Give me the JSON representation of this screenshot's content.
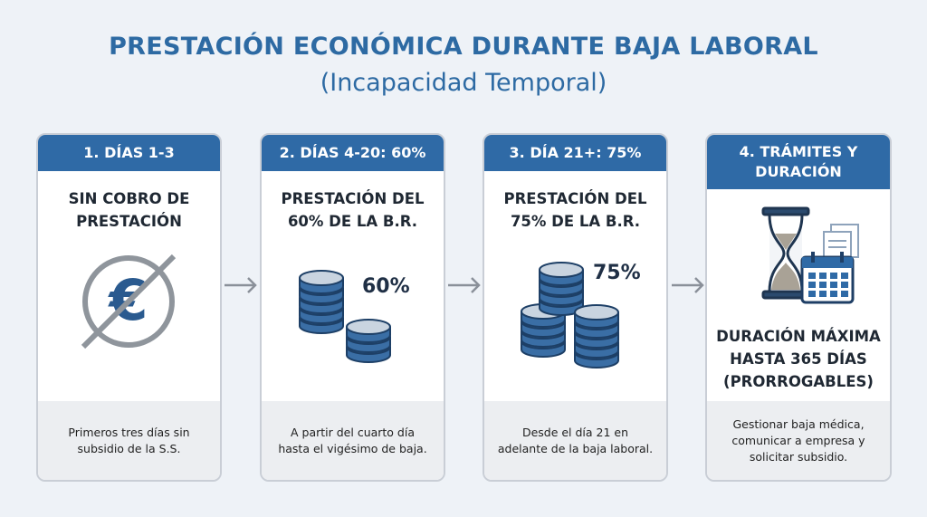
{
  "header": {
    "title": "PRESTACIÓN ECONÓMICA DURANTE BAJA LABORAL",
    "subtitle": "(Incapacidad Temporal)"
  },
  "cards": [
    {
      "step": [
        "1. DÍAS 1-3"
      ],
      "heading": [
        "SIN COBRO DE",
        "PRESTACIÓN"
      ],
      "footer": [
        "Primeros tres días sin",
        "subsidio de la S.S."
      ]
    },
    {
      "step": [
        "2. DÍAS 4-20: 60%"
      ],
      "heading": [
        "PRESTACIÓN DEL",
        "60% DE LA B.R."
      ],
      "icon_label": "60%",
      "footer": [
        "A partir del cuarto día",
        "hasta el vigésimo de baja."
      ]
    },
    {
      "step": [
        "3. DÍA 21+: 75%"
      ],
      "heading": [
        "PRESTACIÓN DEL",
        "75% DE LA B.R."
      ],
      "icon_label": "75%",
      "footer": [
        "Desde el día 21  en",
        "adelante de la baja laboral."
      ]
    },
    {
      "step": [
        "4. TRÁMITES Y",
        "DURACIÓN"
      ],
      "heading": [
        "DURACIÓN MÁXIMA",
        "HASTA 365 DÍAS",
        "(PRORROGABLES)"
      ],
      "footer": [
        "Gestionar baja médica,",
        "comunicar a empresa y",
        "solicitar subsidio."
      ]
    }
  ]
}
